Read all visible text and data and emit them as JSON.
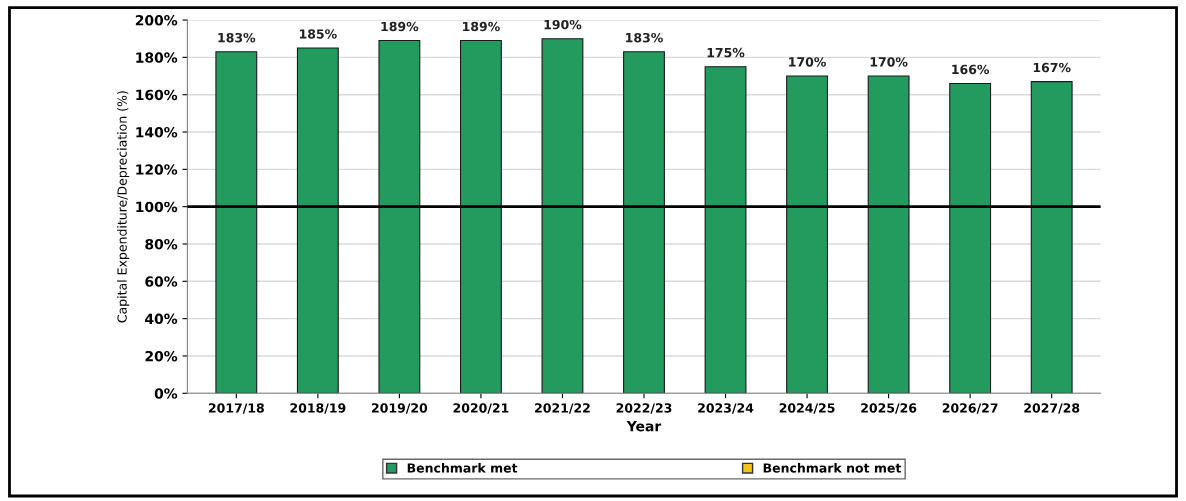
{
  "chart_data": {
    "type": "bar",
    "xlabel": "Year",
    "ylabel": "Capital Expenditure/Depreciation (%)",
    "categories": [
      "2017/18",
      "2018/19",
      "2019/20",
      "2020/21",
      "2021/22",
      "2022/23",
      "2023/24",
      "2024/25",
      "2025/26",
      "2026/27",
      "2027/28"
    ],
    "series": [
      {
        "name": "Benchmark met",
        "color": "#239b5f",
        "values": [
          183,
          185,
          189,
          189,
          190,
          183,
          175,
          170,
          170,
          166,
          167
        ],
        "value_labels": [
          "183%",
          "185%",
          "189%",
          "189%",
          "190%",
          "183%",
          "175%",
          "170%",
          "170%",
          "166%",
          "167%"
        ]
      },
      {
        "name": "Benchmark not met",
        "color": "#f0c419",
        "values": [
          null,
          null,
          null,
          null,
          null,
          null,
          null,
          null,
          null,
          null,
          null
        ]
      }
    ],
    "ylim": [
      0,
      200
    ],
    "yticks": [
      {
        "value": 0,
        "label": "0%"
      },
      {
        "value": 20,
        "label": "20%"
      },
      {
        "value": 40,
        "label": "40%"
      },
      {
        "value": 60,
        "label": "60%"
      },
      {
        "value": 80,
        "label": "80%"
      },
      {
        "value": 100,
        "label": "100%"
      },
      {
        "value": 120,
        "label": "120%"
      },
      {
        "value": 140,
        "label": "140%"
      },
      {
        "value": 160,
        "label": "160%"
      },
      {
        "value": 180,
        "label": "180%"
      },
      {
        "value": 200,
        "label": "200%"
      }
    ],
    "ref_lines": [
      {
        "axis": "y",
        "value": 100,
        "color": "#000000",
        "line_style": "solid"
      }
    ],
    "grid": "y",
    "legend": "bottom"
  }
}
